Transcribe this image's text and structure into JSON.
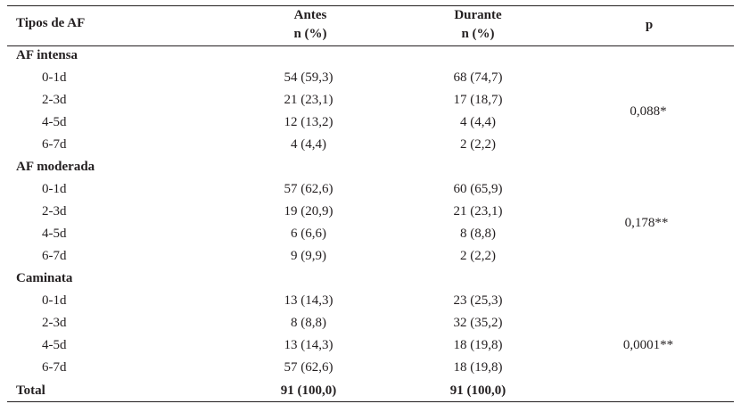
{
  "table": {
    "header": {
      "col1": "Tipos de AF",
      "antes_line1": "Antes",
      "antes_line2": "n (%)",
      "durante_line1": "Durante",
      "durante_line2": "n (%)",
      "p": "p"
    },
    "sections": [
      {
        "title": "AF intensa",
        "p": "0,088*",
        "rows": [
          {
            "label": "0-1d",
            "antes": "54 (59,3)",
            "durante": "68 (74,7)"
          },
          {
            "label": "2-3d",
            "antes": "21 (23,1)",
            "durante": "17 (18,7)"
          },
          {
            "label": "4-5d",
            "antes": "12 (13,2)",
            "durante": "4 (4,4)"
          },
          {
            "label": "6-7d",
            "antes": "4 (4,4)",
            "durante": "2 (2,2)"
          }
        ]
      },
      {
        "title": "AF moderada",
        "p": "0,178**",
        "rows": [
          {
            "label": "0-1d",
            "antes": "57 (62,6)",
            "durante": "60 (65,9)"
          },
          {
            "label": "2-3d",
            "antes": "19 (20,9)",
            "durante": "21 (23,1)"
          },
          {
            "label": "4-5d",
            "antes": "6 (6,6)",
            "durante": "8 (8,8)"
          },
          {
            "label": "6-7d",
            "antes": "9 (9,9)",
            "durante": "2 (2,2)"
          }
        ]
      },
      {
        "title": "Caminata",
        "p": "0,0001**",
        "rows": [
          {
            "label": "0-1d",
            "antes": "13 (14,3)",
            "durante": "23 (25,3)"
          },
          {
            "label": "2-3d",
            "antes": "8 (8,8)",
            "durante": "32 (35,2)"
          },
          {
            "label": "4-5d",
            "antes": "13 (14,3)",
            "durante": "18 (19,8)"
          },
          {
            "label": "6-7d",
            "antes": "57 (62,6)",
            "durante": "18 (19,8)"
          }
        ]
      }
    ],
    "total": {
      "label": "Total",
      "antes": "91 (100,0)",
      "durante": "91 (100,0)"
    }
  }
}
